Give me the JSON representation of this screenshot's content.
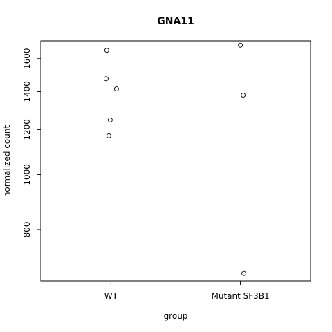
{
  "chart_data": {
    "type": "scatter",
    "title": "GNA11",
    "xlabel": "group",
    "ylabel": "normalized count",
    "y_scale": "log",
    "ylim": [
      650,
      1720
    ],
    "grid": false,
    "categories": [
      "WT",
      "Mutant SF3B1"
    ],
    "y_ticks": [
      800,
      1000,
      1200,
      1400,
      1600
    ],
    "y_tick_labels": [
      "800",
      "1000",
      "1200",
      "1400",
      "1600"
    ],
    "series": [
      {
        "points": [
          {
            "group": "WT",
            "y": 1655
          },
          {
            "group": "WT",
            "y": 1475
          },
          {
            "group": "WT",
            "y": 1415
          },
          {
            "group": "WT",
            "y": 1248
          },
          {
            "group": "WT",
            "y": 1170
          },
          {
            "group": "Mutant SF3B1",
            "y": 1690
          },
          {
            "group": "Mutant SF3B1",
            "y": 1380
          },
          {
            "group": "Mutant SF3B1",
            "y": 670
          }
        ]
      }
    ]
  }
}
